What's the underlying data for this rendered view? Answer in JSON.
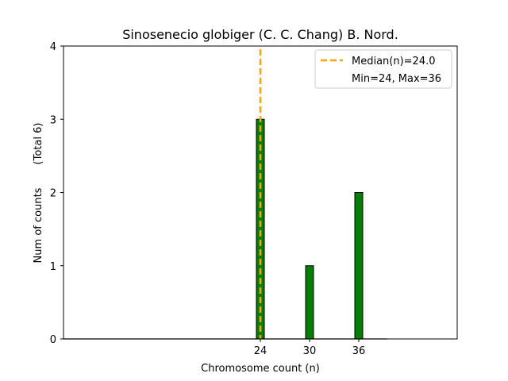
{
  "chart_data": {
    "type": "bar",
    "title": "Sinosenecio globiger (C. C. Chang) B. Nord.",
    "xlabel": "Chromosome count (n)",
    "ylabel": "Num of counts",
    "ylabel_total": "(Total 6)",
    "x": [
      24,
      30,
      36
    ],
    "values": [
      3,
      1,
      2
    ],
    "xticks": [
      "24",
      "30",
      "36"
    ],
    "yticks": [
      "0",
      "1",
      "2",
      "3",
      "4"
    ],
    "ylim": [
      0,
      4
    ],
    "xlim": [
      0,
      48
    ],
    "bar_color": "#008000",
    "bar_edge_color": "#000000",
    "median": 24.0,
    "median_color": "#FFA500",
    "legend": {
      "placement": "top-right",
      "entries": [
        "Median(n)=24.0",
        "Min=24, Max=36"
      ]
    },
    "grid": false
  }
}
